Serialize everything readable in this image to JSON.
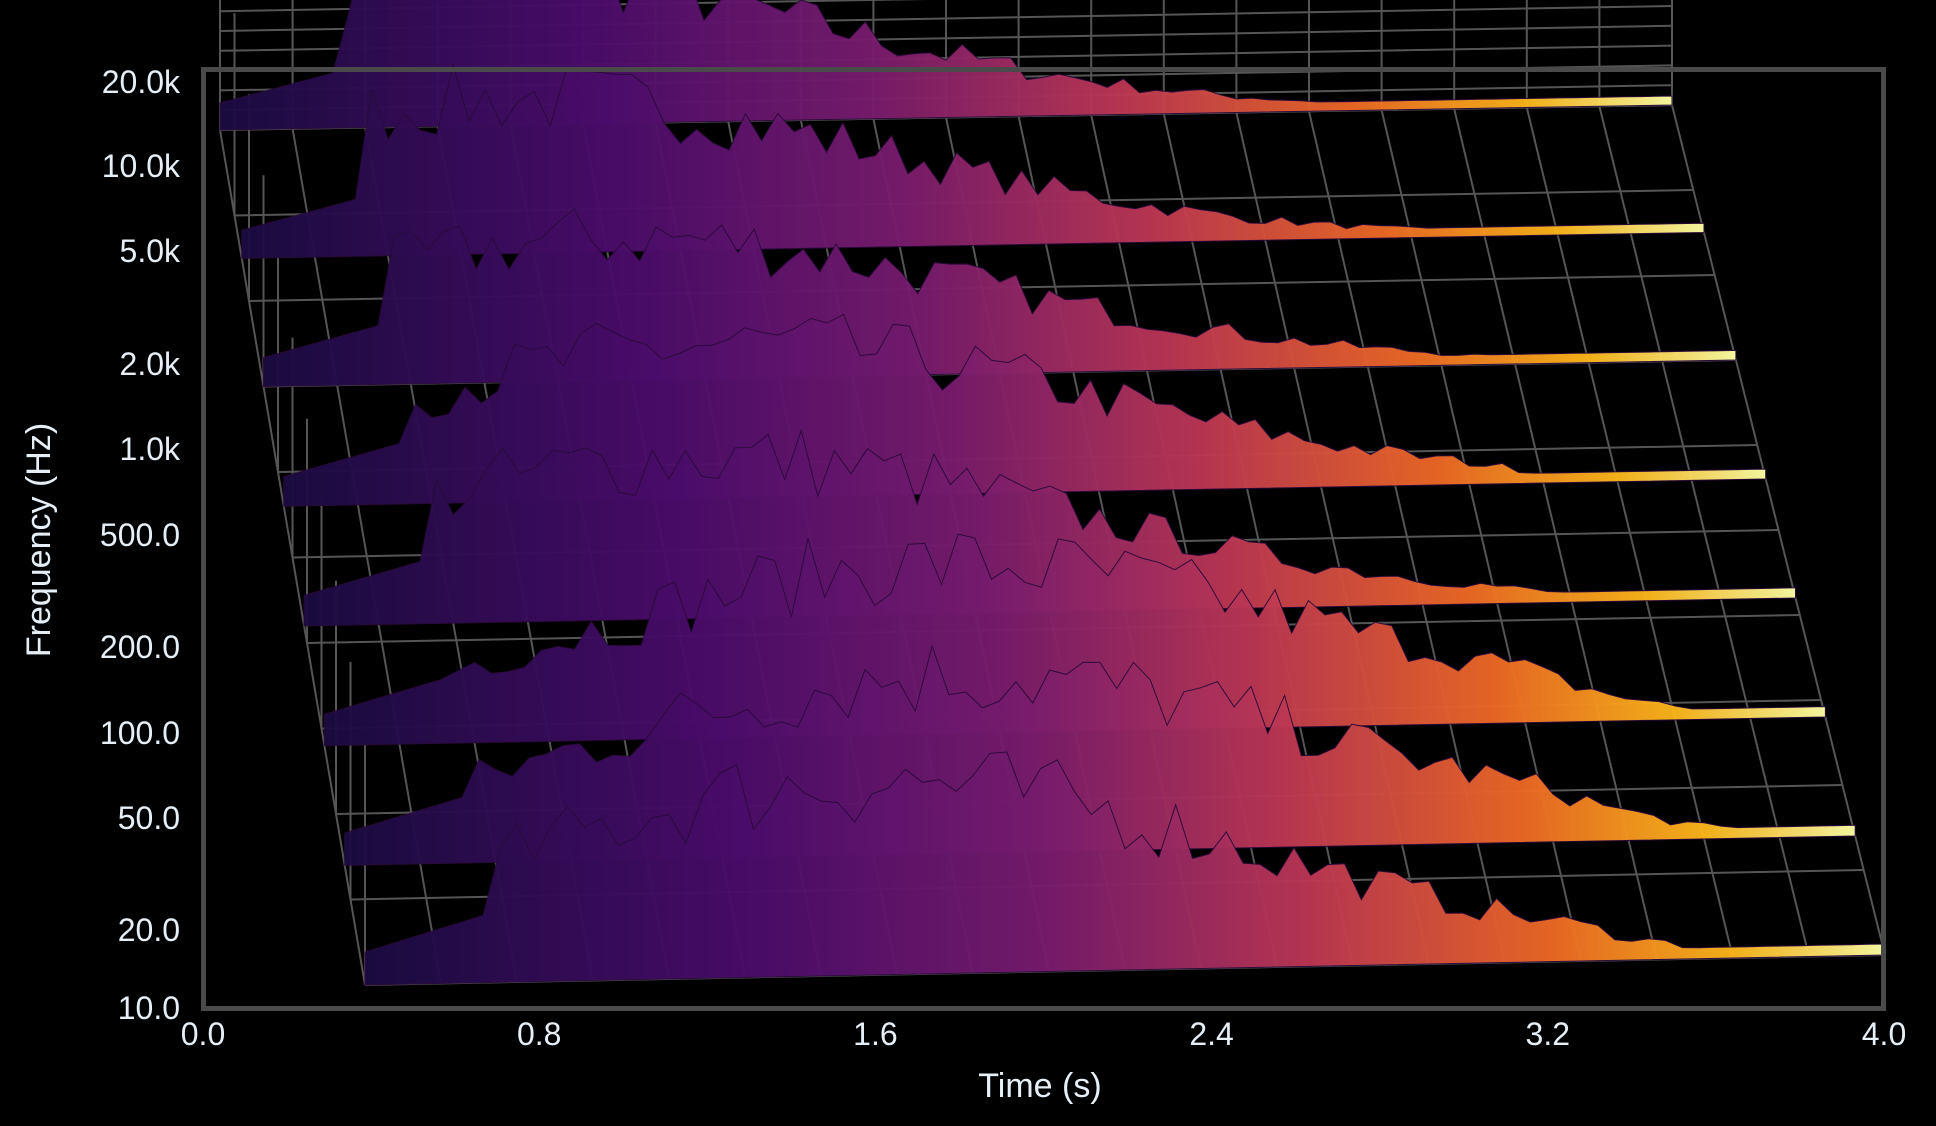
{
  "chart_data": {
    "type": "surface",
    "xlabel": "Time (s)",
    "ylabel": "Frequency (Hz)",
    "x_ticks": [
      "0.0",
      "0.8",
      "1.6",
      "2.4",
      "3.2",
      "4.0"
    ],
    "y_ticks": [
      "20.0k",
      "10.0k",
      "5.0k",
      "2.0k",
      "1.0k",
      "500.0",
      "200.0",
      "100.0",
      "50.0",
      "20.0",
      "10.0"
    ],
    "xlim": [
      0,
      4.0
    ],
    "ylim": [
      10,
      20000
    ],
    "y_scale": "log",
    "colormap": "inferno",
    "background": "#000000",
    "grid": true,
    "ridges": [
      {
        "depth": 0.0,
        "f_hz": 20,
        "peak_time": 1.32,
        "peak_level": 0.95
      },
      {
        "depth": 0.14,
        "f_hz": 50,
        "peak_time": 1.6,
        "peak_level": 0.9
      },
      {
        "depth": 0.28,
        "f_hz": 100,
        "peak_time": 1.65,
        "peak_level": 0.88
      },
      {
        "depth": 0.42,
        "f_hz": 300,
        "peak_time": 1.05,
        "peak_level": 0.86
      },
      {
        "depth": 0.56,
        "f_hz": 1000,
        "peak_time": 1.2,
        "peak_level": 0.84
      },
      {
        "depth": 0.7,
        "f_hz": 3000,
        "peak_time": 0.95,
        "peak_level": 0.8
      },
      {
        "depth": 0.85,
        "f_hz": 8000,
        "peak_time": 0.75,
        "peak_level": 0.9
      },
      {
        "depth": 1.0,
        "f_hz": 16000,
        "peak_time": 0.62,
        "peak_level": 0.95
      }
    ]
  }
}
